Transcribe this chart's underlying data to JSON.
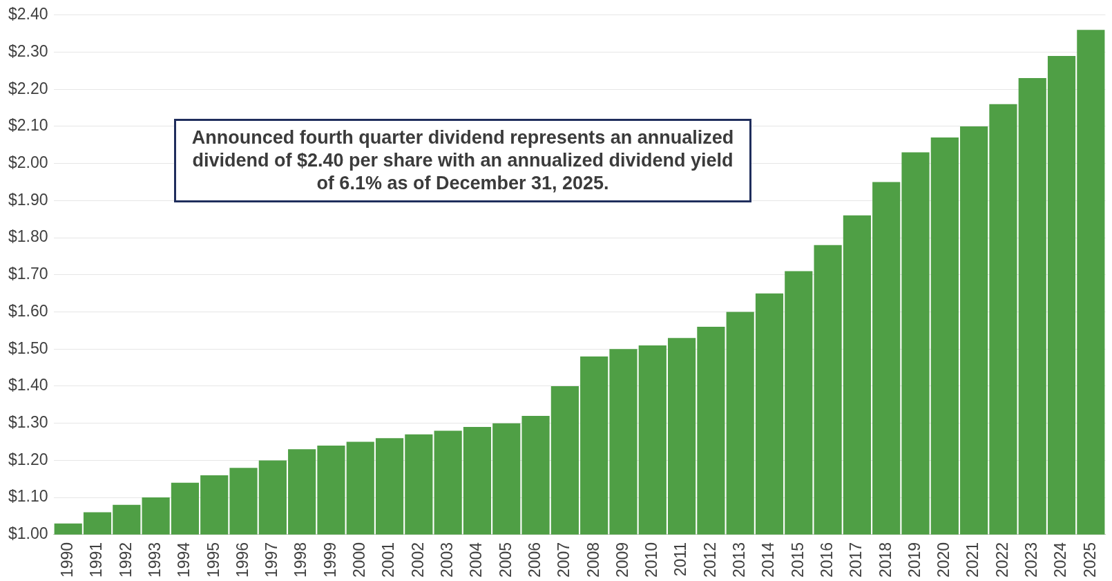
{
  "chart_data": {
    "type": "bar",
    "categories": [
      "1990",
      "1991",
      "1992",
      "1993",
      "1994",
      "1995",
      "1996",
      "1997",
      "1998",
      "1999",
      "2000",
      "2001",
      "2002",
      "2003",
      "2004",
      "2005",
      "2006",
      "2007",
      "2008",
      "2009",
      "2010",
      "2011",
      "2012",
      "2013",
      "2014",
      "2015",
      "2016",
      "2017",
      "2018",
      "2019",
      "2020",
      "2021",
      "2022",
      "2023",
      "2024",
      "2025"
    ],
    "values": [
      1.03,
      1.06,
      1.08,
      1.1,
      1.14,
      1.16,
      1.18,
      1.2,
      1.23,
      1.24,
      1.25,
      1.26,
      1.27,
      1.28,
      1.29,
      1.3,
      1.32,
      1.4,
      1.48,
      1.5,
      1.51,
      1.53,
      1.56,
      1.6,
      1.65,
      1.71,
      1.78,
      1.86,
      1.95,
      2.03,
      2.07,
      2.1,
      2.16,
      2.23,
      2.29,
      2.36
    ],
    "color": "#4f9f45",
    "ylim": [
      1.0,
      2.4
    ],
    "yticks": [
      {
        "value": 1.0,
        "label": "$1.00"
      },
      {
        "value": 1.1,
        "label": "$1.10"
      },
      {
        "value": 1.2,
        "label": "$1.20"
      },
      {
        "value": 1.3,
        "label": "$1.30"
      },
      {
        "value": 1.4,
        "label": "$1.40"
      },
      {
        "value": 1.5,
        "label": "$1.50"
      },
      {
        "value": 1.6,
        "label": "$1.60"
      },
      {
        "value": 1.7,
        "label": "$1.70"
      },
      {
        "value": 1.8,
        "label": "$1.80"
      },
      {
        "value": 1.9,
        "label": "$1.90"
      },
      {
        "value": 2.0,
        "label": "$2.00"
      },
      {
        "value": 2.1,
        "label": "$2.10"
      },
      {
        "value": 2.2,
        "label": "$2.20"
      },
      {
        "value": 2.3,
        "label": "$2.30"
      },
      {
        "value": 2.4,
        "label": "$2.40"
      }
    ],
    "grid": "y",
    "legend": false,
    "annotations": [
      "Announced fourth quarter dividend represents an annualized dividend of $2.40 per share with an annualized dividend yield of 6.1% as of December 31, 2025."
    ]
  }
}
